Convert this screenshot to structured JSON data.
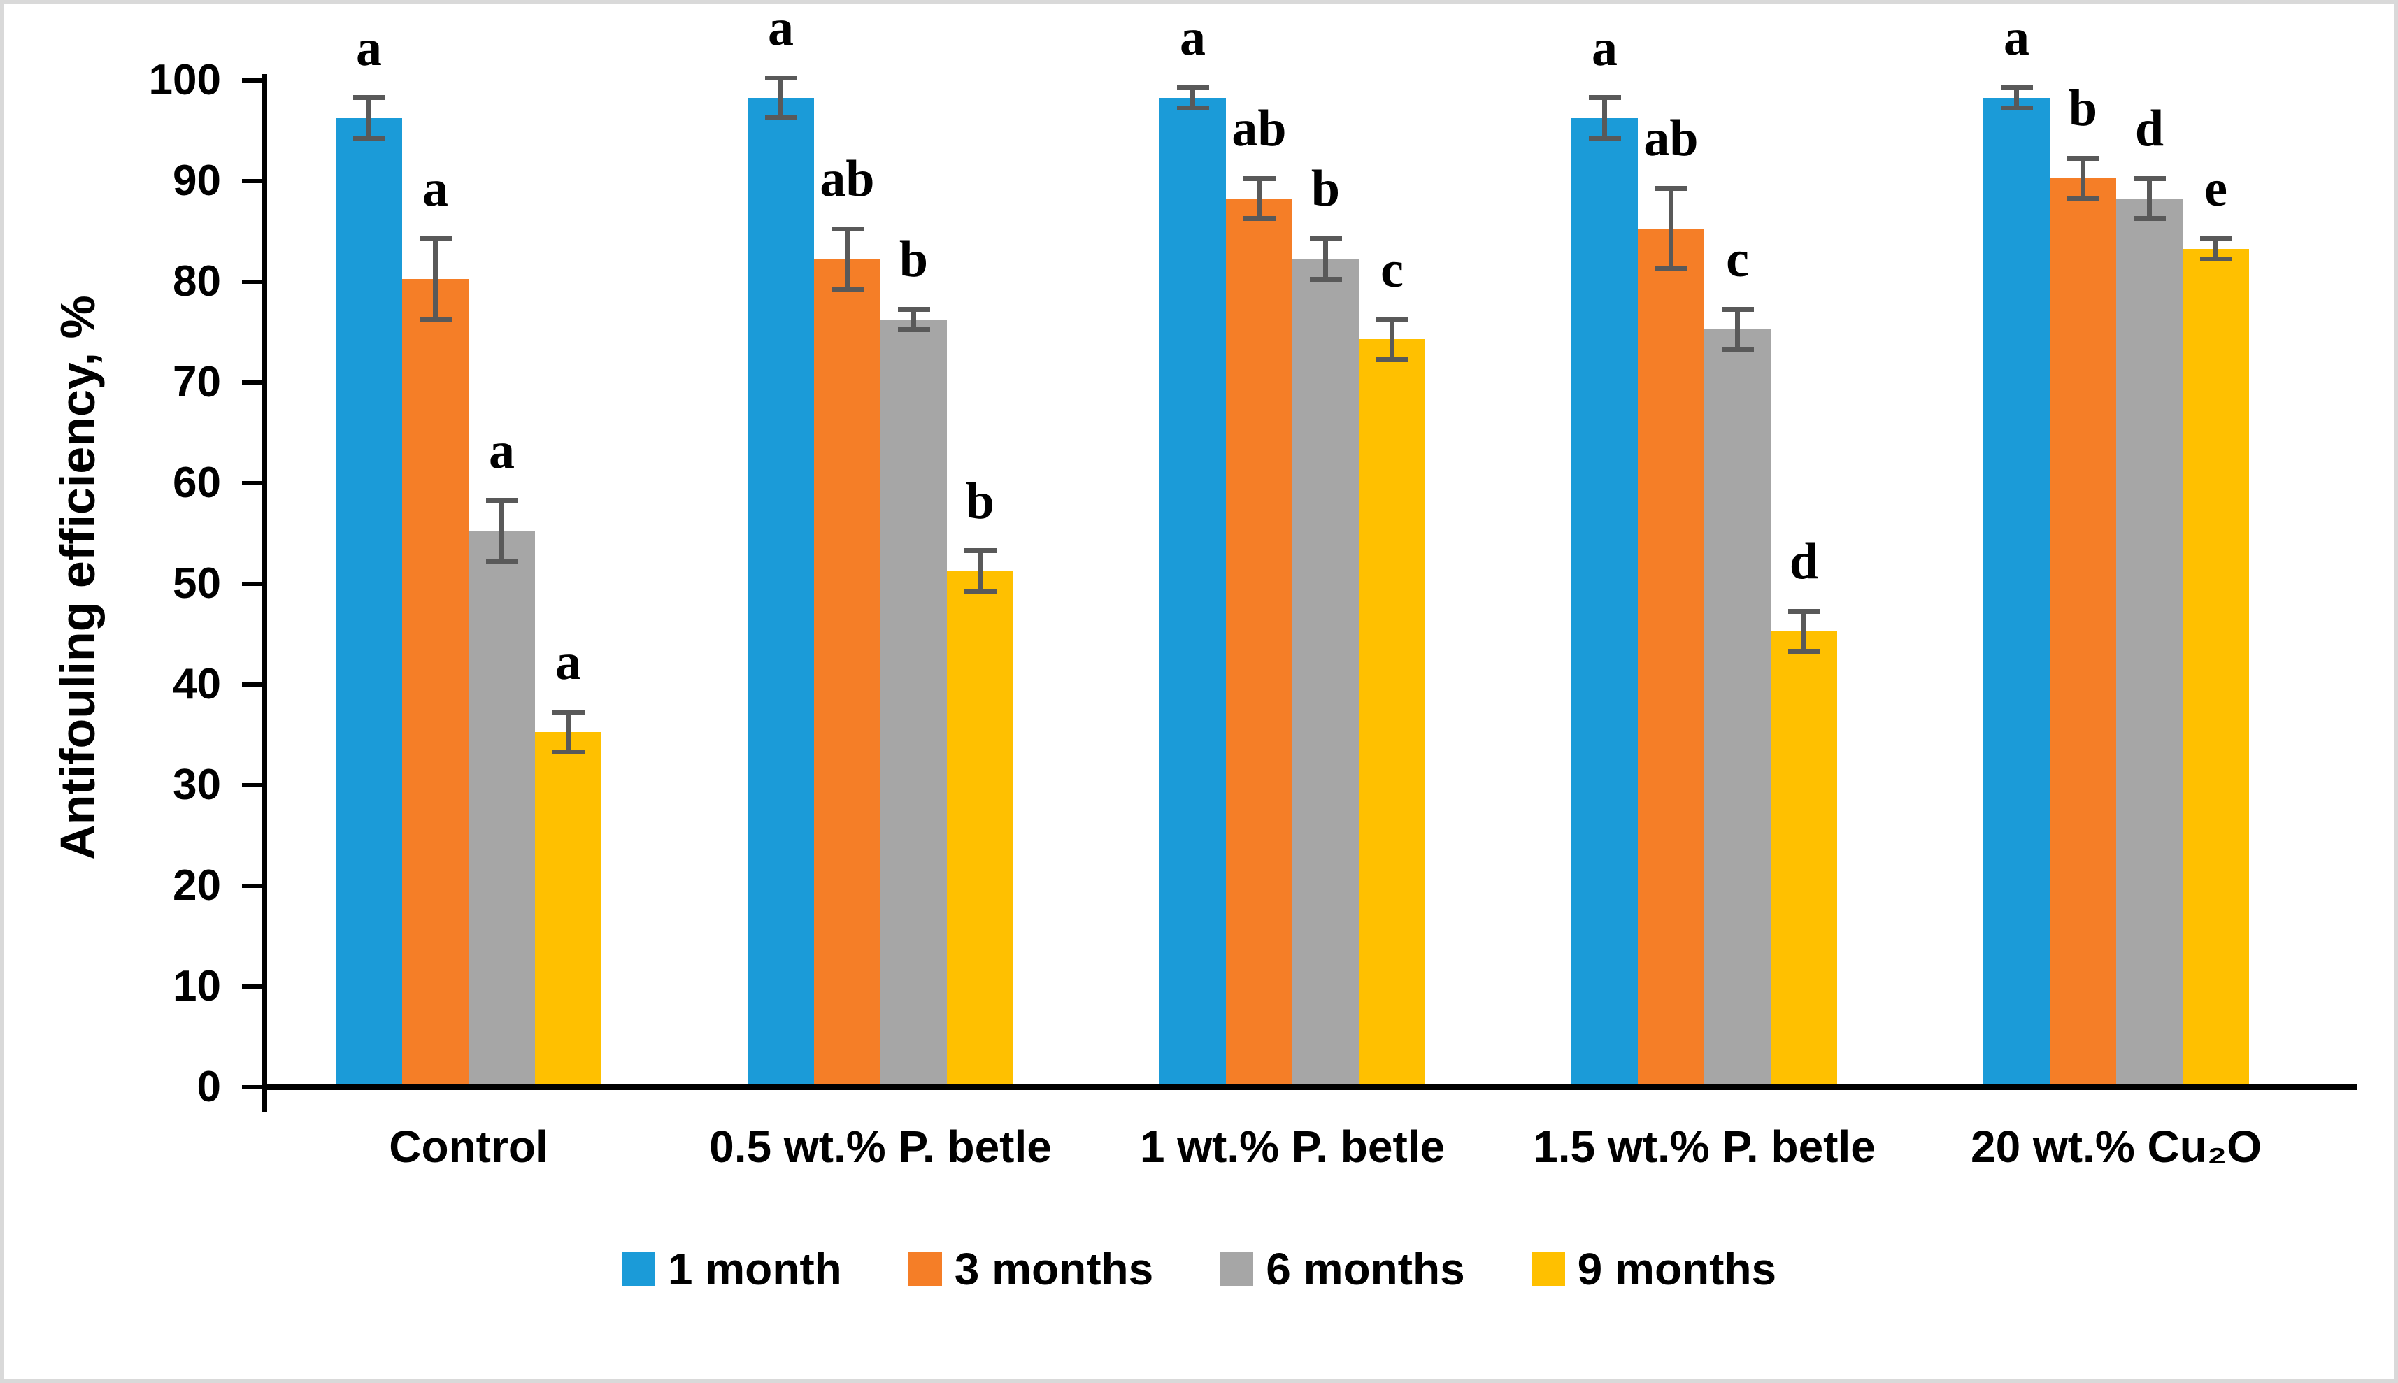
{
  "figure": {
    "background_color": "#ffffff",
    "border_color": "#d9d9d9"
  },
  "chart_data": {
    "type": "bar",
    "title": "",
    "xlabel": "",
    "ylabel": "Antifouling efficiency, %",
    "ylim": [
      0,
      100
    ],
    "ytick_step": 10,
    "ytick_labels": [
      "0",
      "10",
      "20",
      "30",
      "40",
      "50",
      "60",
      "70",
      "80",
      "90",
      "100"
    ],
    "grid": false,
    "legend_position": "bottom",
    "axis_color": "#000000",
    "error_bar_color": "#595959",
    "categories": [
      "Control",
      "0.5 wt.% P. betle",
      "1 wt.% P. betle",
      "1.5 wt.% P. betle",
      "20 wt.% Cu₂O"
    ],
    "series": [
      {
        "name": "1 month",
        "color": "#1b9bd8",
        "values": [
          96,
          98,
          98,
          96,
          98
        ],
        "errors": [
          2,
          2,
          1,
          2,
          1
        ],
        "letters": [
          "a",
          "a",
          "a",
          "a",
          "a"
        ]
      },
      {
        "name": "3 months",
        "color": "#f57e27",
        "values": [
          80,
          82,
          88,
          85,
          90
        ],
        "errors": [
          4,
          3,
          2,
          4,
          2
        ],
        "letters": [
          "a",
          "ab",
          "ab",
          "ab",
          "b"
        ]
      },
      {
        "name": "6 months",
        "color": "#a6a6a6",
        "values": [
          55,
          76,
          82,
          75,
          88
        ],
        "errors": [
          3,
          1,
          2,
          2,
          2
        ],
        "letters": [
          "a",
          "b",
          "b",
          "c",
          "d"
        ]
      },
      {
        "name": "9 months",
        "color": "#ffc000",
        "values": [
          35,
          51,
          74,
          45,
          83
        ],
        "errors": [
          2,
          2,
          2,
          2,
          1
        ],
        "letters": [
          "a",
          "b",
          "c",
          "d",
          "e"
        ]
      }
    ]
  }
}
